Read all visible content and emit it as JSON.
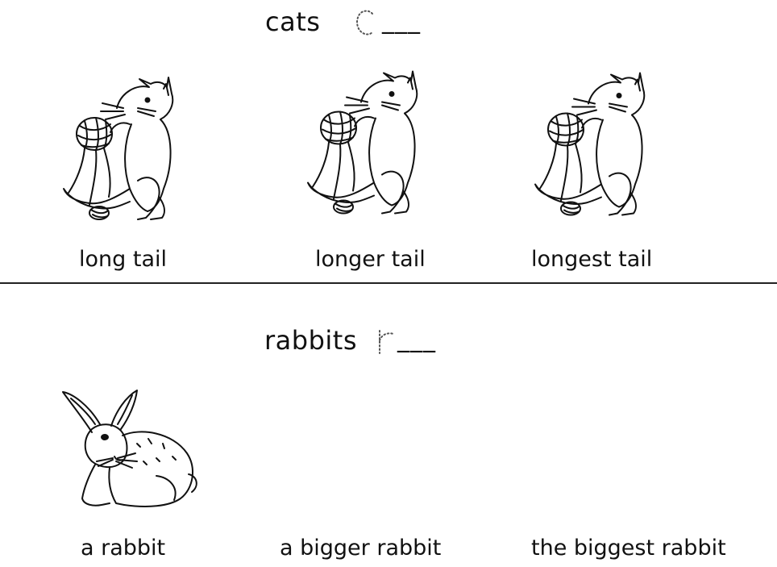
{
  "cats_section": {
    "heading": "cats",
    "blank": "___",
    "captions": [
      "long tail",
      "longer tail",
      "longest tail"
    ]
  },
  "rabbits_section": {
    "heading": "rabbits",
    "blank": "___",
    "captions": [
      "a rabbit",
      "a bigger rabbit",
      "the biggest rabbit"
    ]
  }
}
